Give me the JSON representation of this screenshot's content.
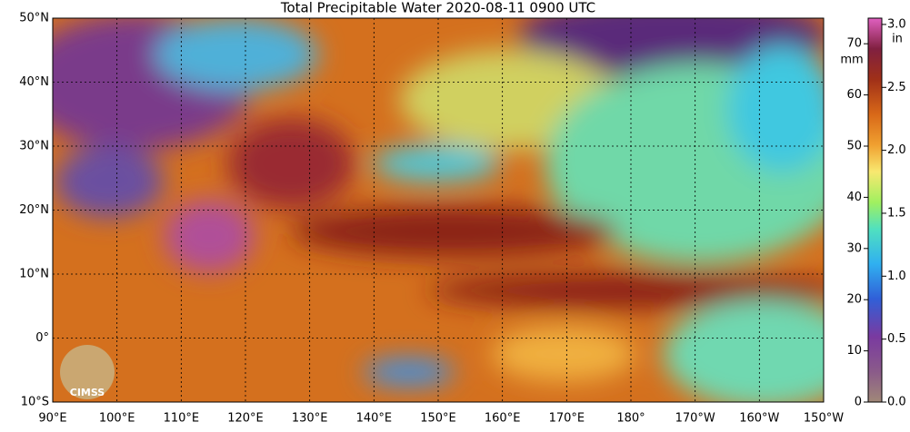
{
  "title": "Total Precipitable Water  2020-08-11 0900 UTC",
  "map": {
    "lat_labels": [
      "50°N",
      "40°N",
      "30°N",
      "20°N",
      "10°N",
      "0°",
      "10°S"
    ],
    "lon_labels": [
      "90°E",
      "100°E",
      "110°E",
      "120°E",
      "130°E",
      "140°E",
      "150°E",
      "160°E",
      "170°E",
      "180°",
      "170°W",
      "160°W",
      "150°W"
    ]
  },
  "colorbar": {
    "mm_unit": "mm",
    "mm_lim": [
      0,
      75
    ],
    "mm_ticks": [
      0,
      10,
      20,
      30,
      40,
      50,
      60,
      70
    ],
    "in_unit": "in",
    "in_lim": [
      0,
      3.05
    ],
    "in_ticks": [
      {
        "value": 0,
        "label": "0.0"
      },
      0.5,
      {
        "value": 1,
        "label": "1.0"
      },
      1.5,
      {
        "value": 2,
        "label": "2.0"
      },
      2.5,
      {
        "value": 3,
        "label": "3.0"
      }
    ]
  },
  "logo": "CIMSS"
}
